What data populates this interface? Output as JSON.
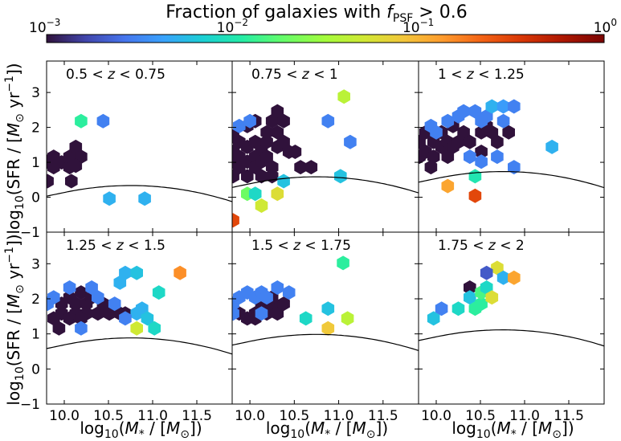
{
  "colorbar": {
    "title": "Fraction of galaxies with f_PSF > 0.6",
    "title_main": "Fraction of galaxies with ",
    "title_f": "f",
    "title_sub": "PSF",
    "title_tail": " > 0.6",
    "scale": "log",
    "range": [
      0.001,
      1
    ],
    "ticks": [
      {
        "value": 0.001,
        "base": "10",
        "exp": "−3"
      },
      {
        "value": 0.01,
        "base": "10",
        "exp": "−2"
      },
      {
        "value": 0.1,
        "base": "10",
        "exp": "−1"
      },
      {
        "value": 1,
        "base": "10",
        "exp": "0"
      }
    ]
  },
  "axes": {
    "xlabel": "log10(M*/[M☉])",
    "ylabel": "log10(SFR/[M☉ yr−1])",
    "xlim": [
      9.8,
      11.9
    ],
    "ylim": [
      -1,
      3.9
    ],
    "xticks": [
      "10.0",
      "10.5",
      "11.0",
      "11.5"
    ],
    "yticks": [
      "−1",
      "0",
      "1",
      "2",
      "3"
    ]
  },
  "chart_data": [
    {
      "type": "heatmap",
      "label": "0.5 < z < 0.75",
      "relation": {
        "a": 0.2635,
        "b": -1.5
      },
      "cells": [
        {
          "x": 9.81,
          "y": 0.46,
          "v": 0.001
        },
        {
          "x": 9.81,
          "y": 1.02,
          "v": 0.001
        },
        {
          "x": 9.88,
          "y": 0.86,
          "v": 0.001
        },
        {
          "x": 9.88,
          "y": 1.16,
          "v": 0.001
        },
        {
          "x": 9.97,
          "y": 1.0,
          "v": 0.001
        },
        {
          "x": 10.06,
          "y": 0.86,
          "v": 0.001
        },
        {
          "x": 10.06,
          "y": 1.16,
          "v": 0.001
        },
        {
          "x": 10.13,
          "y": 1.44,
          "v": 0.001
        },
        {
          "x": 10.19,
          "y": 1.16,
          "v": 0.001
        },
        {
          "x": 10.08,
          "y": 0.46,
          "v": 0.001
        },
        {
          "x": 10.13,
          "y": 0.9,
          "v": 0.001
        },
        {
          "x": 10.19,
          "y": 2.18,
          "v": 0.012
        },
        {
          "x": 10.44,
          "y": 2.18,
          "v": 0.003
        },
        {
          "x": 10.51,
          "y": -0.04,
          "v": 0.005
        },
        {
          "x": 10.91,
          "y": -0.04,
          "v": 0.005
        }
      ]
    },
    {
      "type": "heatmap",
      "label": "0.75 < z < 1",
      "relation": {
        "a": 0.2635,
        "b": -1.25
      },
      "cells": [
        {
          "x": 9.81,
          "y": 1.74,
          "v": 0.001
        },
        {
          "x": 9.81,
          "y": 1.3,
          "v": 0.001
        },
        {
          "x": 9.81,
          "y": 1.02,
          "v": 0.001
        },
        {
          "x": 9.81,
          "y": 0.6,
          "v": 0.001
        },
        {
          "x": 9.88,
          "y": 1.16,
          "v": 0.001
        },
        {
          "x": 9.88,
          "y": 1.58,
          "v": 0.001
        },
        {
          "x": 9.88,
          "y": 0.86,
          "v": 0.001
        },
        {
          "x": 9.97,
          "y": 1.44,
          "v": 0.001
        },
        {
          "x": 9.97,
          "y": 1.02,
          "v": 0.001
        },
        {
          "x": 9.97,
          "y": 2.04,
          "v": 0.001
        },
        {
          "x": 9.97,
          "y": 0.6,
          "v": 0.001
        },
        {
          "x": 10.06,
          "y": 1.58,
          "v": 0.001
        },
        {
          "x": 10.06,
          "y": 1.16,
          "v": 0.001
        },
        {
          "x": 10.06,
          "y": 0.86,
          "v": 0.001
        },
        {
          "x": 10.06,
          "y": 2.18,
          "v": 0.001
        },
        {
          "x": 10.13,
          "y": 1.44,
          "v": 0.001
        },
        {
          "x": 10.13,
          "y": 1.02,
          "v": 0.001
        },
        {
          "x": 10.13,
          "y": 0.6,
          "v": 0.001
        },
        {
          "x": 10.19,
          "y": 1.86,
          "v": 0.001
        },
        {
          "x": 10.19,
          "y": 1.58,
          "v": 0.001
        },
        {
          "x": 10.19,
          "y": 1.16,
          "v": 0.001
        },
        {
          "x": 10.25,
          "y": 2.18,
          "v": 0.001
        },
        {
          "x": 10.25,
          "y": 0.86,
          "v": 0.001
        },
        {
          "x": 10.31,
          "y": 1.86,
          "v": 0.001
        },
        {
          "x": 10.31,
          "y": 2.46,
          "v": 0.001
        },
        {
          "x": 10.31,
          "y": 1.44,
          "v": 0.001
        },
        {
          "x": 10.38,
          "y": 1.58,
          "v": 0.001
        },
        {
          "x": 10.38,
          "y": 2.18,
          "v": 0.001
        },
        {
          "x": 10.44,
          "y": 1.3,
          "v": 0.001
        },
        {
          "x": 10.25,
          "y": 0.6,
          "v": 0.001
        },
        {
          "x": 10.51,
          "y": 1.3,
          "v": 0.001
        },
        {
          "x": 10.57,
          "y": 0.86,
          "v": 0.001
        },
        {
          "x": 10.69,
          "y": 0.86,
          "v": 0.001
        },
        {
          "x": 9.88,
          "y": 2.04,
          "v": 0.003
        },
        {
          "x": 10.0,
          "y": 2.18,
          "v": 0.003
        },
        {
          "x": 10.88,
          "y": 2.18,
          "v": 0.003
        },
        {
          "x": 11.13,
          "y": 1.58,
          "v": 0.003
        },
        {
          "x": 9.81,
          "y": -0.66,
          "v": 0.3
        },
        {
          "x": 9.97,
          "y": 0.1,
          "v": 0.02
        },
        {
          "x": 10.06,
          "y": 0.1,
          "v": 0.008
        },
        {
          "x": 10.13,
          "y": -0.24,
          "v": 0.05
        },
        {
          "x": 10.31,
          "y": 0.1,
          "v": 0.06
        },
        {
          "x": 10.38,
          "y": 0.46,
          "v": 0.006
        },
        {
          "x": 11.06,
          "y": 2.88,
          "v": 0.04
        },
        {
          "x": 11.02,
          "y": 0.6,
          "v": 0.006
        }
      ]
    },
    {
      "type": "heatmap",
      "label": "1 < z < 1.25",
      "relation": {
        "a": 0.2635,
        "b": -1.1
      },
      "cells": [
        {
          "x": 9.81,
          "y": 1.58,
          "v": 0.001
        },
        {
          "x": 9.81,
          "y": 1.16,
          "v": 0.001
        },
        {
          "x": 9.88,
          "y": 1.3,
          "v": 0.001
        },
        {
          "x": 9.88,
          "y": 1.86,
          "v": 0.001
        },
        {
          "x": 9.97,
          "y": 1.58,
          "v": 0.001
        },
        {
          "x": 9.97,
          "y": 1.16,
          "v": 0.001
        },
        {
          "x": 10.06,
          "y": 1.44,
          "v": 0.001
        },
        {
          "x": 10.06,
          "y": 1.86,
          "v": 0.001
        },
        {
          "x": 10.13,
          "y": 1.58,
          "v": 0.001
        },
        {
          "x": 10.13,
          "y": 1.16,
          "v": 0.001
        },
        {
          "x": 10.19,
          "y": 2.04,
          "v": 0.001
        },
        {
          "x": 10.19,
          "y": 1.44,
          "v": 0.001
        },
        {
          "x": 10.25,
          "y": 1.58,
          "v": 0.001
        },
        {
          "x": 10.31,
          "y": 1.86,
          "v": 0.001
        },
        {
          "x": 10.38,
          "y": 1.58,
          "v": 0.001
        },
        {
          "x": 10.51,
          "y": 1.86,
          "v": 0.001
        },
        {
          "x": 10.51,
          "y": 1.3,
          "v": 0.001
        },
        {
          "x": 10.63,
          "y": 1.86,
          "v": 0.001
        },
        {
          "x": 10.69,
          "y": 1.58,
          "v": 0.001
        },
        {
          "x": 10.82,
          "y": 1.86,
          "v": 0.001
        },
        {
          "x": 9.94,
          "y": 0.86,
          "v": 0.001
        },
        {
          "x": 10.57,
          "y": 2.04,
          "v": 0.001
        },
        {
          "x": 9.94,
          "y": 2.04,
          "v": 0.003
        },
        {
          "x": 10.0,
          "y": 1.86,
          "v": 0.003
        },
        {
          "x": 10.13,
          "y": 2.18,
          "v": 0.003
        },
        {
          "x": 10.25,
          "y": 2.32,
          "v": 0.003
        },
        {
          "x": 10.31,
          "y": 2.46,
          "v": 0.003
        },
        {
          "x": 10.44,
          "y": 2.46,
          "v": 0.003
        },
        {
          "x": 10.57,
          "y": 2.32,
          "v": 0.003
        },
        {
          "x": 10.63,
          "y": 2.6,
          "v": 0.005
        },
        {
          "x": 10.76,
          "y": 2.6,
          "v": 0.004
        },
        {
          "x": 10.88,
          "y": 2.6,
          "v": 0.003
        },
        {
          "x": 10.51,
          "y": 2.18,
          "v": 0.003
        },
        {
          "x": 10.76,
          "y": 2.18,
          "v": 0.003
        },
        {
          "x": 10.69,
          "y": 1.16,
          "v": 0.003
        },
        {
          "x": 10.88,
          "y": 0.86,
          "v": 0.003
        },
        {
          "x": 11.31,
          "y": 1.44,
          "v": 0.005
        },
        {
          "x": 10.38,
          "y": 1.16,
          "v": 0.003
        },
        {
          "x": 10.51,
          "y": 1.02,
          "v": 0.003
        },
        {
          "x": 10.44,
          "y": 0.6,
          "v": 0.01
        },
        {
          "x": 10.13,
          "y": 0.32,
          "v": 0.12
        },
        {
          "x": 10.44,
          "y": 0.04,
          "v": 0.3
        }
      ]
    },
    {
      "type": "heatmap",
      "label": "1.25 < z < 1.5",
      "relation": {
        "a": 0.2635,
        "b": -0.95
      },
      "cells": [
        {
          "x": 9.88,
          "y": 1.44,
          "v": 0.001
        },
        {
          "x": 9.97,
          "y": 1.58,
          "v": 0.001
        },
        {
          "x": 9.97,
          "y": 1.86,
          "v": 0.001
        },
        {
          "x": 10.06,
          "y": 1.44,
          "v": 0.001
        },
        {
          "x": 10.06,
          "y": 2.04,
          "v": 0.001
        },
        {
          "x": 10.13,
          "y": 1.58,
          "v": 0.001
        },
        {
          "x": 10.13,
          "y": 1.86,
          "v": 0.001
        },
        {
          "x": 10.19,
          "y": 2.18,
          "v": 0.001
        },
        {
          "x": 10.25,
          "y": 1.58,
          "v": 0.001
        },
        {
          "x": 10.25,
          "y": 1.86,
          "v": 0.001
        },
        {
          "x": 10.31,
          "y": 2.04,
          "v": 0.001
        },
        {
          "x": 10.38,
          "y": 1.58,
          "v": 0.001
        },
        {
          "x": 10.44,
          "y": 1.86,
          "v": 0.001
        },
        {
          "x": 10.51,
          "y": 1.58,
          "v": 0.001
        },
        {
          "x": 10.63,
          "y": 1.58,
          "v": 0.001
        },
        {
          "x": 9.94,
          "y": 1.16,
          "v": 0.001
        },
        {
          "x": 10.19,
          "y": 1.44,
          "v": 0.001
        },
        {
          "x": 10.69,
          "y": 1.58,
          "v": 0.001
        },
        {
          "x": 9.81,
          "y": 1.86,
          "v": 0.003
        },
        {
          "x": 9.88,
          "y": 2.04,
          "v": 0.003
        },
        {
          "x": 10.06,
          "y": 2.32,
          "v": 0.003
        },
        {
          "x": 10.31,
          "y": 2.32,
          "v": 0.003
        },
        {
          "x": 10.38,
          "y": 2.04,
          "v": 0.003
        },
        {
          "x": 10.57,
          "y": 1.86,
          "v": 0.003
        },
        {
          "x": 10.63,
          "y": 2.46,
          "v": 0.005
        },
        {
          "x": 10.69,
          "y": 2.74,
          "v": 0.005
        },
        {
          "x": 10.82,
          "y": 2.74,
          "v": 0.006
        },
        {
          "x": 10.82,
          "y": 1.58,
          "v": 0.005
        },
        {
          "x": 10.88,
          "y": 1.72,
          "v": 0.005
        },
        {
          "x": 10.94,
          "y": 1.44,
          "v": 0.006
        },
        {
          "x": 11.02,
          "y": 1.16,
          "v": 0.008
        },
        {
          "x": 11.07,
          "y": 2.18,
          "v": 0.008
        },
        {
          "x": 10.69,
          "y": 1.44,
          "v": 0.003
        },
        {
          "x": 10.19,
          "y": 1.16,
          "v": 0.003
        },
        {
          "x": 10.82,
          "y": 1.16,
          "v": 0.05
        },
        {
          "x": 11.31,
          "y": 2.74,
          "v": 0.15
        }
      ]
    },
    {
      "type": "heatmap",
      "label": "1.5 < z < 1.75",
      "relation": {
        "a": 0.2635,
        "b": -0.85
      },
      "cells": [
        {
          "x": 9.88,
          "y": 1.58,
          "v": 0.001
        },
        {
          "x": 9.97,
          "y": 1.44,
          "v": 0.001
        },
        {
          "x": 10.06,
          "y": 1.58,
          "v": 0.001
        },
        {
          "x": 10.13,
          "y": 1.86,
          "v": 0.001
        },
        {
          "x": 10.19,
          "y": 1.58,
          "v": 0.001
        },
        {
          "x": 10.25,
          "y": 1.86,
          "v": 0.001
        },
        {
          "x": 10.31,
          "y": 1.58,
          "v": 0.001
        },
        {
          "x": 10.38,
          "y": 1.86,
          "v": 0.001
        },
        {
          "x": 10.06,
          "y": 1.44,
          "v": 0.001
        },
        {
          "x": 10.25,
          "y": 2.04,
          "v": 0.001
        },
        {
          "x": 9.81,
          "y": 1.86,
          "v": 0.003
        },
        {
          "x": 9.88,
          "y": 2.04,
          "v": 0.003
        },
        {
          "x": 9.97,
          "y": 2.18,
          "v": 0.003
        },
        {
          "x": 10.06,
          "y": 2.04,
          "v": 0.003
        },
        {
          "x": 10.13,
          "y": 2.18,
          "v": 0.003
        },
        {
          "x": 10.19,
          "y": 2.04,
          "v": 0.003
        },
        {
          "x": 10.31,
          "y": 2.32,
          "v": 0.003
        },
        {
          "x": 10.44,
          "y": 2.18,
          "v": 0.003
        },
        {
          "x": 9.81,
          "y": 1.58,
          "v": 0.003
        },
        {
          "x": 10.13,
          "y": 1.58,
          "v": 0.003
        },
        {
          "x": 10.63,
          "y": 1.44,
          "v": 0.008
        },
        {
          "x": 10.88,
          "y": 1.72,
          "v": 0.006
        },
        {
          "x": 10.88,
          "y": 1.16,
          "v": 0.08
        },
        {
          "x": 11.05,
          "y": 3.02,
          "v": 0.012
        },
        {
          "x": 11.1,
          "y": 1.44,
          "v": 0.04
        }
      ]
    },
    {
      "type": "heatmap",
      "label": "1.75 < z < 2",
      "relation": {
        "a": 0.2635,
        "b": -0.72
      },
      "cells": [
        {
          "x": 9.97,
          "y": 1.44,
          "v": 0.006
        },
        {
          "x": 10.06,
          "y": 1.72,
          "v": 0.003
        },
        {
          "x": 10.38,
          "y": 2.32,
          "v": 0.001
        },
        {
          "x": 10.38,
          "y": 2.04,
          "v": 0.006
        },
        {
          "x": 10.44,
          "y": 1.72,
          "v": 0.012
        },
        {
          "x": 10.51,
          "y": 1.86,
          "v": 0.012
        },
        {
          "x": 10.51,
          "y": 2.18,
          "v": 0.015
        },
        {
          "x": 10.57,
          "y": 2.32,
          "v": 0.008
        },
        {
          "x": 10.63,
          "y": 2.04,
          "v": 0.06
        },
        {
          "x": 10.69,
          "y": 2.88,
          "v": 0.06
        },
        {
          "x": 10.76,
          "y": 2.6,
          "v": 0.005
        },
        {
          "x": 10.88,
          "y": 2.6,
          "v": 0.12
        },
        {
          "x": 10.57,
          "y": 2.74,
          "v": 0.002
        },
        {
          "x": 10.25,
          "y": 1.72,
          "v": 0.008
        }
      ]
    }
  ]
}
